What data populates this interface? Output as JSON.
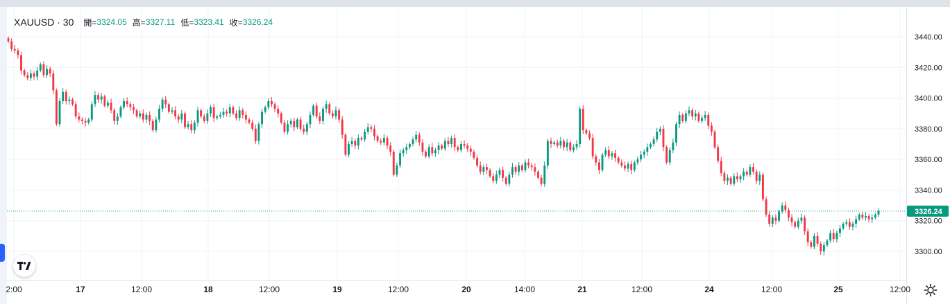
{
  "legend": {
    "symbol": "XAUUSD · 30",
    "open_label": "開=",
    "open_value": "3324.05",
    "high_label": "高=",
    "high_value": "3327.11",
    "low_label": "低=",
    "low_value": "3323.41",
    "close_label": "收=",
    "close_value": "3326.24"
  },
  "colors": {
    "up": "#089981",
    "down": "#f23645",
    "grid": "#f0f3fa",
    "axis_text": "#131722",
    "last_price_line": "#089981"
  },
  "logo_icon": "tradingview-logo-icon",
  "settings_icon": "gear-icon",
  "chart_data": {
    "type": "candlestick",
    "symbol": "XAUUSD",
    "interval": "30",
    "y_ticks": [
      "3440.00",
      "3420.00",
      "3400.00",
      "3380.00",
      "3360.00",
      "3340.00",
      "3320.00",
      "3300.00"
    ],
    "ylim": [
      3290,
      3450
    ],
    "x_ticks": [
      "2:00",
      "17",
      "12:00",
      "18",
      "12:00",
      "19",
      "12:00",
      "20",
      "14:00",
      "21",
      "12:00",
      "24",
      "12:00",
      "25",
      "12:00"
    ],
    "bold_x_ticks": [
      "17",
      "18",
      "19",
      "20",
      "21",
      "24",
      "25"
    ],
    "last_price": 3326.24,
    "last_price_label": "3326.24",
    "grid": true,
    "closes": [
      3437,
      3432,
      3431,
      3428,
      3418,
      3415,
      3413,
      3416,
      3414,
      3418,
      3422,
      3415,
      3419,
      3416,
      3405,
      3383,
      3398,
      3404,
      3398,
      3399,
      3396,
      3388,
      3386,
      3385,
      3384,
      3386,
      3396,
      3402,
      3399,
      3401,
      3395,
      3397,
      3392,
      3385,
      3388,
      3394,
      3398,
      3396,
      3394,
      3392,
      3388,
      3390,
      3386,
      3389,
      3385,
      3379,
      3386,
      3393,
      3399,
      3396,
      3391,
      3392,
      3388,
      3386,
      3390,
      3381,
      3383,
      3379,
      3384,
      3392,
      3388,
      3385,
      3390,
      3394,
      3387,
      3388,
      3389,
      3391,
      3390,
      3394,
      3390,
      3387,
      3392,
      3389,
      3386,
      3384,
      3380,
      3372,
      3383,
      3391,
      3394,
      3398,
      3396,
      3393,
      3390,
      3384,
      3378,
      3383,
      3385,
      3381,
      3386,
      3380,
      3378,
      3383,
      3389,
      3395,
      3388,
      3385,
      3393,
      3396,
      3390,
      3388,
      3392,
      3386,
      3376,
      3363,
      3370,
      3372,
      3369,
      3374,
      3373,
      3378,
      3381,
      3380,
      3375,
      3372,
      3371,
      3374,
      3369,
      3365,
      3350,
      3356,
      3364,
      3366,
      3368,
      3370,
      3373,
      3376,
      3371,
      3365,
      3362,
      3368,
      3364,
      3366,
      3369,
      3367,
      3372,
      3370,
      3374,
      3368,
      3366,
      3370,
      3369,
      3367,
      3365,
      3361,
      3356,
      3352,
      3355,
      3353,
      3349,
      3346,
      3350,
      3353,
      3348,
      3344,
      3350,
      3355,
      3352,
      3356,
      3353,
      3358,
      3356,
      3355,
      3352,
      3348,
      3344,
      3356,
      3372,
      3370,
      3371,
      3369,
      3372,
      3368,
      3371,
      3366,
      3368,
      3370,
      3393,
      3379,
      3377,
      3374,
      3362,
      3358,
      3353,
      3363,
      3366,
      3362,
      3364,
      3361,
      3358,
      3356,
      3354,
      3357,
      3353,
      3358,
      3360,
      3363,
      3365,
      3368,
      3370,
      3373,
      3378,
      3380,
      3368,
      3358,
      3366,
      3371,
      3383,
      3389,
      3385,
      3390,
      3392,
      3388,
      3390,
      3385,
      3387,
      3389,
      3382,
      3378,
      3368,
      3359,
      3351,
      3346,
      3348,
      3344,
      3349,
      3347,
      3349,
      3352,
      3350,
      3355,
      3352,
      3346,
      3350,
      3334,
      3324,
      3318,
      3322,
      3320,
      3326,
      3330,
      3327,
      3322,
      3319,
      3316,
      3320,
      3322,
      3313,
      3306,
      3303,
      3310,
      3305,
      3300,
      3304,
      3307,
      3312,
      3308,
      3312,
      3315,
      3318,
      3319,
      3316,
      3318,
      3321,
      3324,
      3322,
      3323,
      3321,
      3322,
      3324,
      3326.24
    ]
  }
}
